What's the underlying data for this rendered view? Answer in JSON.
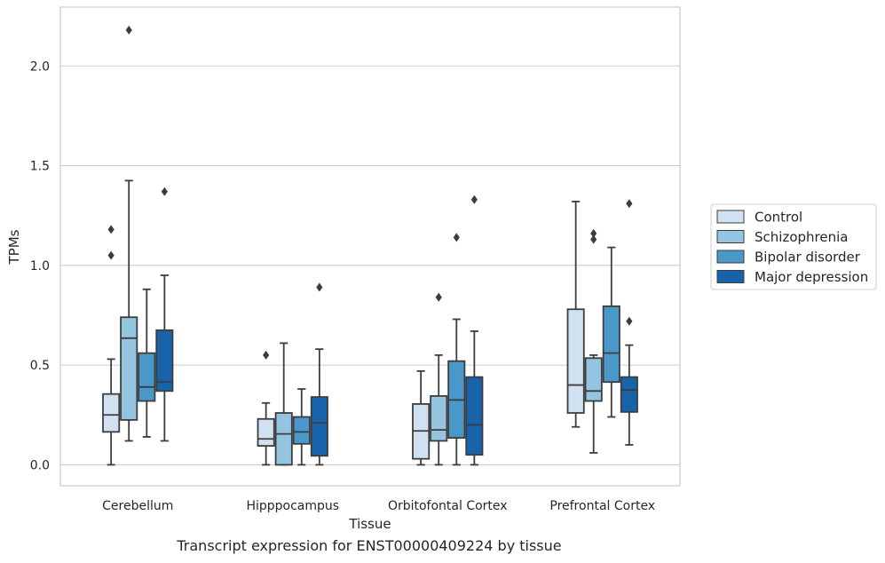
{
  "chart_data": {
    "type": "box",
    "xlabel": "Tissue",
    "ylabel": "TPMs",
    "ylim": [
      -0.105,
      2.295
    ],
    "yticks": [
      0.0,
      0.5,
      1.0,
      1.5,
      2.0
    ],
    "ytick_labels": [
      "0.0",
      "0.5",
      "1.0",
      "1.5",
      "2.0"
    ],
    "grid": "horizontal",
    "legend_position": "right",
    "categories": [
      "Cerebellum",
      "Hipppocampus",
      "Orbitofontal Cortex",
      "Prefrontal Cortex"
    ],
    "series": [
      {
        "name": "Control",
        "color": "#d0e1f2",
        "boxes": [
          {
            "whislo": 0.0,
            "q1": 0.165,
            "med": 0.25,
            "q3": 0.355,
            "whishi": 0.53,
            "fliers": [
              1.05,
              1.18
            ]
          },
          {
            "whislo": 0.0,
            "q1": 0.095,
            "med": 0.13,
            "q3": 0.23,
            "whishi": 0.31,
            "fliers": [
              0.55
            ]
          },
          {
            "whislo": 0.0,
            "q1": 0.03,
            "med": 0.17,
            "q3": 0.305,
            "whishi": 0.47,
            "fliers": []
          },
          {
            "whislo": 0.19,
            "q1": 0.26,
            "med": 0.4,
            "q3": 0.78,
            "whishi": 1.32,
            "fliers": []
          }
        ]
      },
      {
        "name": "Schizophrenia",
        "color": "#94c4df",
        "boxes": [
          {
            "whislo": 0.12,
            "q1": 0.225,
            "med": 0.635,
            "q3": 0.74,
            "whishi": 1.425,
            "fliers": [
              2.18
            ]
          },
          {
            "whislo": 0.0,
            "q1": 0.0,
            "med": 0.155,
            "q3": 0.26,
            "whishi": 0.61,
            "fliers": []
          },
          {
            "whislo": 0.0,
            "q1": 0.12,
            "med": 0.175,
            "q3": 0.345,
            "whishi": 0.55,
            "fliers": [
              0.84
            ]
          },
          {
            "whislo": 0.06,
            "q1": 0.32,
            "med": 0.37,
            "q3": 0.535,
            "whishi": 0.55,
            "fliers": [
              1.13,
              1.16
            ]
          }
        ]
      },
      {
        "name": "Bipolar disorder",
        "color": "#4a98c9",
        "boxes": [
          {
            "whislo": 0.14,
            "q1": 0.32,
            "med": 0.39,
            "q3": 0.56,
            "whishi": 0.88,
            "fliers": []
          },
          {
            "whislo": 0.0,
            "q1": 0.105,
            "med": 0.165,
            "q3": 0.24,
            "whishi": 0.38,
            "fliers": []
          },
          {
            "whislo": 0.0,
            "q1": 0.135,
            "med": 0.325,
            "q3": 0.52,
            "whishi": 0.73,
            "fliers": [
              1.14
            ]
          },
          {
            "whislo": 0.24,
            "q1": 0.415,
            "med": 0.56,
            "q3": 0.795,
            "whishi": 1.09,
            "fliers": []
          }
        ]
      },
      {
        "name": "Major depression",
        "color": "#1764ab",
        "boxes": [
          {
            "whislo": 0.12,
            "q1": 0.37,
            "med": 0.415,
            "q3": 0.675,
            "whishi": 0.95,
            "fliers": [
              1.37
            ]
          },
          {
            "whislo": 0.0,
            "q1": 0.045,
            "med": 0.21,
            "q3": 0.34,
            "whishi": 0.58,
            "fliers": [
              0.89
            ]
          },
          {
            "whislo": 0.0,
            "q1": 0.05,
            "med": 0.2,
            "q3": 0.44,
            "whishi": 0.67,
            "fliers": [
              1.33
            ]
          },
          {
            "whislo": 0.1,
            "q1": 0.265,
            "med": 0.375,
            "q3": 0.44,
            "whishi": 0.6,
            "fliers": [
              0.72,
              1.31
            ]
          }
        ]
      }
    ]
  },
  "caption": "Transcript expression for ENST00000409224 by tissue"
}
